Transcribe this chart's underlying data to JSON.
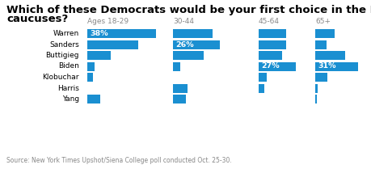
{
  "title_line1": "Which of these Democrats would be your first choice in the Iowa",
  "title_line2": "caucuses?",
  "candidates": [
    "Warren",
    "Sanders",
    "Buttigieg",
    "Biden",
    "Klobuchar",
    "Harris",
    "Yang"
  ],
  "age_groups": [
    "Ages 18-29",
    "30-44",
    "45-64",
    "65+"
  ],
  "values": {
    "Ages 18-29": [
      38,
      28,
      13,
      4,
      3,
      0,
      7
    ],
    "30-44": [
      22,
      26,
      17,
      4,
      0,
      8,
      7
    ],
    "45-64": [
      20,
      20,
      17,
      27,
      6,
      4,
      0
    ],
    "65+": [
      14,
      8,
      22,
      31,
      9,
      2,
      1
    ]
  },
  "labeled_values": {
    "Ages 18-29": {
      "Warren": "38%"
    },
    "30-44": {
      "Sanders": "26%"
    },
    "45-64": {
      "Biden": "27%"
    },
    "65+": {
      "Biden": "31%"
    }
  },
  "bar_color": "#1a8fd1",
  "background_color": "#ffffff",
  "title_fontsize": 9.5,
  "candidate_fontsize": 6.5,
  "header_fontsize": 6.5,
  "label_fontsize": 6.8,
  "source_fontsize": 5.5,
  "source_text": "Source: New York Times Upshot/Siena College poll conducted Oct. 25-30.",
  "max_val": 40,
  "header_color": "#888888",
  "source_color": "#888888",
  "label_color": "#000000"
}
